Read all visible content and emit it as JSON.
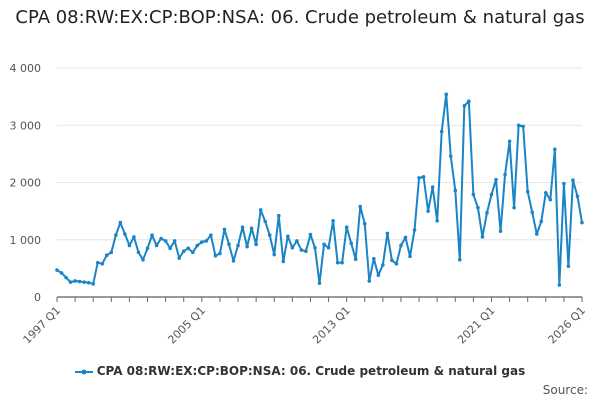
{
  "chart_data": {
    "type": "line",
    "title": "CPA 08:RW:EX:CP:BOP:NSA: 06. Crude petroleum & natural gas",
    "series": [
      {
        "name": "CPA 08:RW:EX:CP:BOP:NSA: 06. Crude petroleum & natural gas",
        "color": "#1a84c7",
        "values": [
          470,
          420,
          340,
          260,
          280,
          270,
          260,
          250,
          230,
          600,
          580,
          730,
          780,
          1080,
          1300,
          1100,
          900,
          1050,
          780,
          650,
          850,
          1080,
          900,
          1020,
          980,
          850,
          980,
          680,
          800,
          850,
          780,
          900,
          960,
          980,
          1080,
          720,
          760,
          1180,
          920,
          630,
          900,
          1220,
          880,
          1200,
          920,
          1520,
          1320,
          1080,
          740,
          1420,
          620,
          1060,
          860,
          980,
          820,
          800,
          1090,
          860,
          240,
          920,
          860,
          1330,
          600,
          600,
          1220,
          940,
          660,
          1580,
          1280,
          280,
          670,
          380,
          560,
          1110,
          640,
          580,
          900,
          1040,
          710,
          1170,
          2080,
          2100,
          1500,
          1920,
          1330,
          2890,
          3540,
          2460,
          1860,
          650,
          3340,
          3420,
          1790,
          1560,
          1050,
          1470,
          1790,
          2050,
          1150,
          2140,
          2720,
          1560,
          3000,
          2980,
          1840,
          1480,
          1100,
          1320,
          1820,
          1700,
          2580,
          210,
          1980,
          540,
          2040,
          1760,
          1300
        ]
      }
    ],
    "x_start": "1997 Q1",
    "x_ticks": [
      "1997 Q1",
      "2005 Q1",
      "2013 Q1",
      "2021 Q1",
      "2026 Q1"
    ],
    "x_tick_index": [
      0,
      32,
      64,
      96,
      116
    ],
    "y_ticks": [
      "0",
      "1 000",
      "2 000",
      "3 000",
      "4 000"
    ],
    "y_tick_values": [
      0,
      1000,
      2000,
      3000,
      4000
    ],
    "ylim": [
      0,
      4000
    ],
    "grid": "horizontal",
    "legend_position": "bottom",
    "source_label": "Source:"
  }
}
